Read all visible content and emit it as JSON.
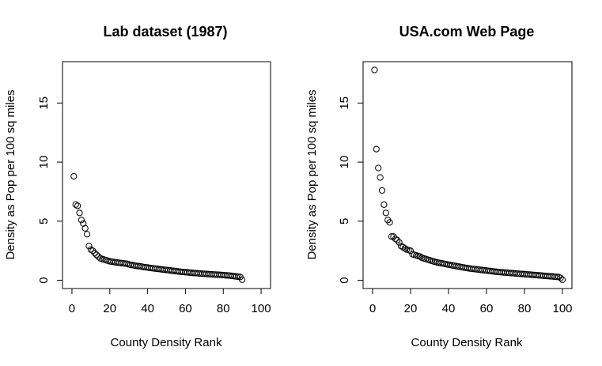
{
  "chart_data": [
    {
      "type": "scatter",
      "title": "Lab dataset (1987)",
      "xlabel": "County Density Rank",
      "ylabel": "Density as Pop per 100 sq miles",
      "xlim": [
        -5,
        105
      ],
      "ylim": [
        -0.7,
        18.5
      ],
      "xticks": [
        0,
        20,
        40,
        60,
        80,
        100
      ],
      "yticks": [
        0,
        5,
        10,
        15
      ],
      "grid": false,
      "x": [
        1,
        2,
        3,
        4,
        5,
        6,
        7,
        8,
        9,
        10,
        11,
        12,
        13,
        14,
        15,
        16,
        17,
        18,
        19,
        20,
        21,
        22,
        23,
        24,
        25,
        26,
        27,
        28,
        29,
        30,
        31,
        32,
        33,
        34,
        35,
        36,
        37,
        38,
        39,
        40,
        41,
        42,
        43,
        44,
        45,
        46,
        47,
        48,
        49,
        50,
        51,
        52,
        53,
        54,
        55,
        56,
        57,
        58,
        59,
        60,
        61,
        62,
        63,
        64,
        65,
        66,
        67,
        68,
        69,
        70,
        71,
        72,
        73,
        74,
        75,
        76,
        77,
        78,
        79,
        80,
        81,
        82,
        83,
        84,
        85,
        86,
        87,
        88,
        89,
        90
      ],
      "y": [
        8.8,
        6.4,
        6.3,
        5.7,
        5.1,
        4.8,
        4.4,
        3.9,
        2.9,
        2.6,
        2.5,
        2.3,
        2.15,
        2.0,
        1.85,
        1.8,
        1.75,
        1.7,
        1.65,
        1.6,
        1.58,
        1.55,
        1.52,
        1.5,
        1.48,
        1.46,
        1.44,
        1.42,
        1.4,
        1.35,
        1.3,
        1.28,
        1.25,
        1.22,
        1.2,
        1.18,
        1.15,
        1.12,
        1.1,
        1.08,
        1.05,
        1.03,
        1.01,
        0.99,
        0.97,
        0.95,
        0.93,
        0.91,
        0.89,
        0.87,
        0.85,
        0.83,
        0.81,
        0.79,
        0.77,
        0.75,
        0.73,
        0.71,
        0.7,
        0.68,
        0.67,
        0.65,
        0.64,
        0.62,
        0.61,
        0.6,
        0.58,
        0.57,
        0.56,
        0.55,
        0.54,
        0.52,
        0.51,
        0.5,
        0.49,
        0.48,
        0.47,
        0.46,
        0.45,
        0.44,
        0.42,
        0.41,
        0.4,
        0.38,
        0.36,
        0.34,
        0.32,
        0.3,
        0.28,
        0.05
      ]
    },
    {
      "type": "scatter",
      "title": "USA.com Web Page",
      "xlabel": "County Density Rank",
      "ylabel": "Density as Pop per 100 sq miles",
      "xlim": [
        -5,
        105
      ],
      "ylim": [
        -0.7,
        18.5
      ],
      "xticks": [
        0,
        20,
        40,
        60,
        80,
        100
      ],
      "yticks": [
        0,
        5,
        10,
        15
      ],
      "grid": false,
      "x": [
        1,
        2,
        3,
        4,
        5,
        6,
        7,
        8,
        9,
        10,
        11,
        12,
        13,
        14,
        15,
        16,
        17,
        18,
        19,
        20,
        21,
        22,
        23,
        24,
        25,
        26,
        27,
        28,
        29,
        30,
        31,
        32,
        33,
        34,
        35,
        36,
        37,
        38,
        39,
        40,
        41,
        42,
        43,
        44,
        45,
        46,
        47,
        48,
        49,
        50,
        51,
        52,
        53,
        54,
        55,
        56,
        57,
        58,
        59,
        60,
        61,
        62,
        63,
        64,
        65,
        66,
        67,
        68,
        69,
        70,
        71,
        72,
        73,
        74,
        75,
        76,
        77,
        78,
        79,
        80,
        81,
        82,
        83,
        84,
        85,
        86,
        87,
        88,
        89,
        90,
        91,
        92,
        93,
        94,
        95,
        96,
        97,
        98,
        99,
        100
      ],
      "y": [
        17.8,
        11.1,
        9.5,
        8.7,
        7.6,
        6.4,
        5.7,
        5.1,
        4.9,
        3.7,
        3.7,
        3.5,
        3.4,
        3.2,
        2.9,
        2.8,
        2.7,
        2.6,
        2.55,
        2.5,
        2.2,
        2.15,
        2.1,
        2.05,
        2.0,
        1.9,
        1.85,
        1.8,
        1.75,
        1.7,
        1.65,
        1.6,
        1.55,
        1.52,
        1.48,
        1.45,
        1.42,
        1.38,
        1.35,
        1.32,
        1.29,
        1.26,
        1.23,
        1.2,
        1.17,
        1.14,
        1.11,
        1.08,
        1.05,
        1.03,
        1.0,
        0.98,
        0.96,
        0.94,
        0.92,
        0.9,
        0.88,
        0.86,
        0.84,
        0.82,
        0.8,
        0.78,
        0.76,
        0.74,
        0.72,
        0.7,
        0.69,
        0.68,
        0.66,
        0.65,
        0.64,
        0.62,
        0.61,
        0.6,
        0.58,
        0.57,
        0.56,
        0.54,
        0.53,
        0.52,
        0.5,
        0.49,
        0.48,
        0.46,
        0.45,
        0.44,
        0.42,
        0.41,
        0.4,
        0.38,
        0.37,
        0.36,
        0.34,
        0.33,
        0.32,
        0.3,
        0.29,
        0.28,
        0.2,
        0.05
      ]
    }
  ]
}
